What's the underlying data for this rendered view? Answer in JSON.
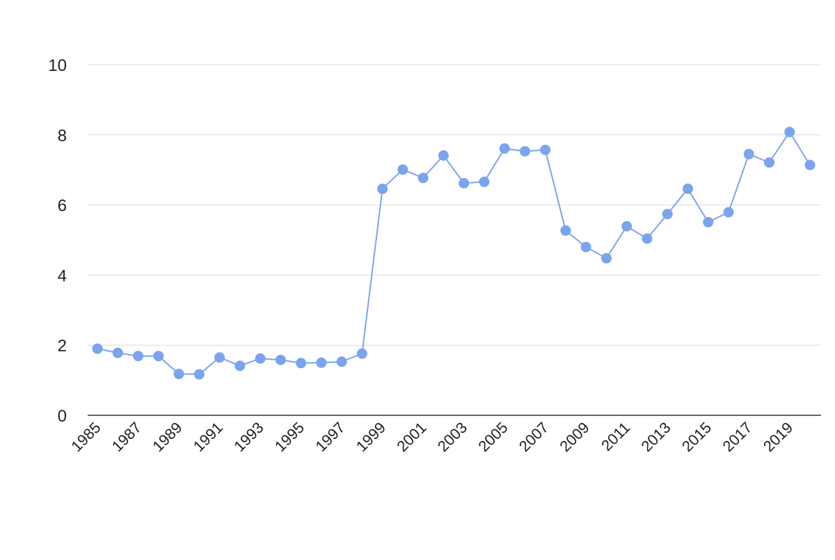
{
  "chart_data": {
    "type": "line",
    "title": "",
    "xlabel": "",
    "ylabel": "",
    "x": [
      1985,
      1986,
      1987,
      1988,
      1989,
      1990,
      1991,
      1992,
      1993,
      1994,
      1995,
      1996,
      1997,
      1998,
      1999,
      2000,
      2001,
      2002,
      2003,
      2004,
      2005,
      2006,
      2007,
      2008,
      2009,
      2010,
      2011,
      2012,
      2013,
      2014,
      2015,
      2016,
      2017,
      2018,
      2019,
      2020
    ],
    "series": [
      {
        "values": [
          1.9,
          1.78,
          1.69,
          1.69,
          1.18,
          1.17,
          1.65,
          1.41,
          1.62,
          1.58,
          1.49,
          1.5,
          1.53,
          1.76,
          6.46,
          7.01,
          6.77,
          7.41,
          6.62,
          6.66,
          7.61,
          7.53,
          7.57,
          5.27,
          4.8,
          4.48,
          5.39,
          5.04,
          5.74,
          6.46,
          5.51,
          5.79,
          7.45,
          7.21,
          8.08,
          7.14
        ],
        "color": "#7ba4ee"
      }
    ],
    "ylim": [
      0,
      10
    ],
    "yticks": [
      "0",
      "2",
      "4",
      "6",
      "8",
      "10"
    ],
    "xtick_labels": [
      "1985",
      "1987",
      "1989",
      "1991",
      "1993",
      "1995",
      "1997",
      "1999",
      "2001",
      "2003",
      "2005",
      "2007",
      "2009",
      "2011",
      "2013",
      "2015",
      "2017",
      "2019"
    ],
    "grid": true,
    "legend": "none"
  }
}
